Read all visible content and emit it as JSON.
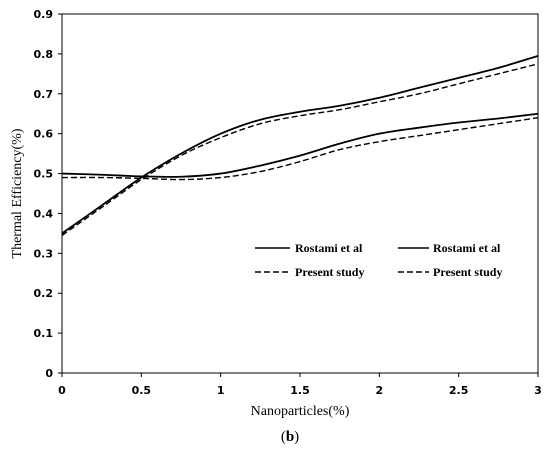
{
  "chart_data": {
    "type": "line",
    "xlabel": "Nanoparticles(%)",
    "ylabel": "Thermal Efficiency(%)",
    "caption_open": "(",
    "caption_letter": "b",
    "caption_close": ")",
    "xlim": [
      0,
      3
    ],
    "ylim": [
      0,
      0.9
    ],
    "x_ticks": [
      0,
      0.5,
      1,
      1.5,
      2,
      2.5,
      3
    ],
    "x_tick_labels": [
      "0",
      "0.5",
      "1",
      "1.5",
      "2",
      "2.5",
      "3"
    ],
    "y_ticks": [
      0,
      0.1,
      0.2,
      0.3,
      0.4,
      0.5,
      0.6,
      0.7,
      0.8,
      0.9
    ],
    "y_tick_labels": [
      "0",
      "0.1",
      "0.2",
      "0.3",
      "0.4",
      "0.5",
      "0.6",
      "0.7",
      "0.8",
      "0.9"
    ],
    "grid": false,
    "legend_placement": "center-right",
    "series": [
      {
        "name": "Rostami et al",
        "style": "solid",
        "color": "#000000",
        "x": [
          0,
          0.25,
          0.5,
          0.75,
          1,
          1.25,
          1.5,
          1.75,
          2,
          2.25,
          2.5,
          2.75,
          3
        ],
        "y": [
          0.35,
          0.42,
          0.49,
          0.55,
          0.6,
          0.635,
          0.655,
          0.67,
          0.69,
          0.715,
          0.74,
          0.765,
          0.795
        ]
      },
      {
        "name": "Present study",
        "style": "dashed",
        "color": "#000000",
        "x": [
          0,
          0.25,
          0.5,
          0.75,
          1,
          1.25,
          1.5,
          1.75,
          2,
          2.25,
          2.5,
          2.75,
          3
        ],
        "y": [
          0.345,
          0.415,
          0.485,
          0.545,
          0.59,
          0.625,
          0.645,
          0.66,
          0.68,
          0.7,
          0.725,
          0.75,
          0.775
        ]
      },
      {
        "name": "Rostami et al",
        "style": "solid",
        "color": "#000000",
        "x": [
          0,
          0.25,
          0.5,
          0.75,
          1,
          1.25,
          1.5,
          1.75,
          2,
          2.25,
          2.5,
          2.75,
          3
        ],
        "y": [
          0.5,
          0.497,
          0.493,
          0.492,
          0.5,
          0.52,
          0.545,
          0.575,
          0.6,
          0.615,
          0.628,
          0.638,
          0.65
        ]
      },
      {
        "name": "Present study",
        "style": "dashed",
        "color": "#000000",
        "x": [
          0,
          0.25,
          0.5,
          0.75,
          1,
          1.25,
          1.5,
          1.75,
          2,
          2.25,
          2.5,
          2.75,
          3
        ],
        "y": [
          0.49,
          0.49,
          0.488,
          0.485,
          0.49,
          0.505,
          0.53,
          0.56,
          0.58,
          0.595,
          0.61,
          0.625,
          0.64
        ]
      }
    ]
  }
}
